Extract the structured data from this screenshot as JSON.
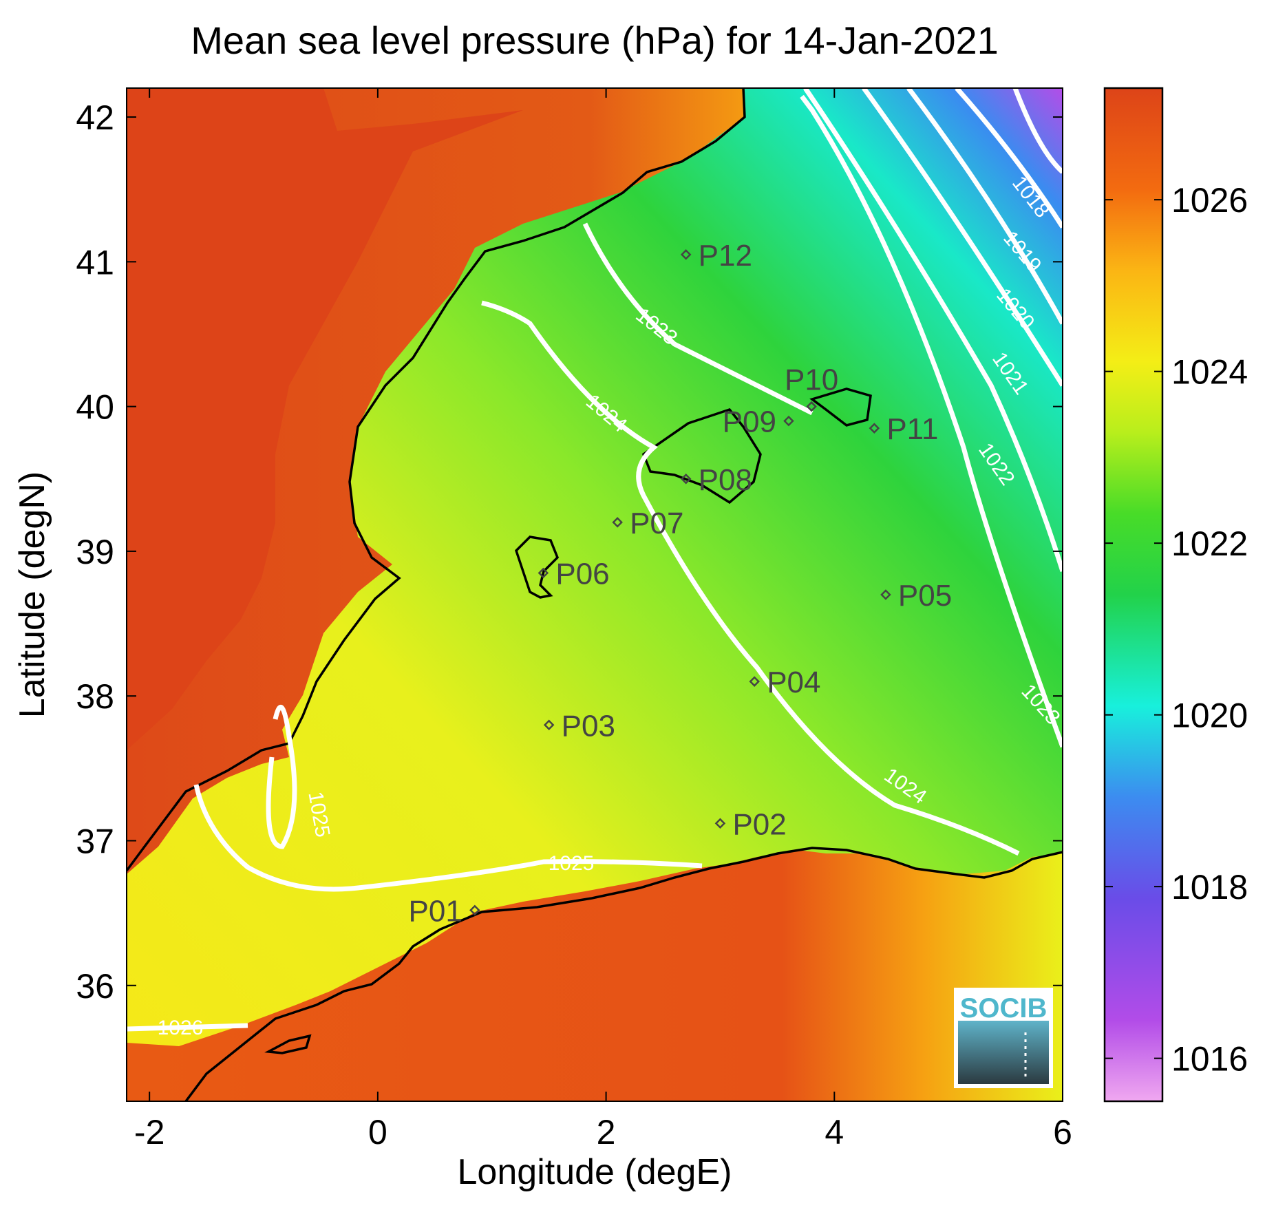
{
  "title": "Mean sea level pressure (hPa) for 14-Jan-2021",
  "xaxis": {
    "label": "Longitude (degE)",
    "range": [
      -2.2,
      6.0
    ],
    "ticks": [
      {
        "value": -2,
        "label": "-2"
      },
      {
        "value": 0,
        "label": "0"
      },
      {
        "value": 2,
        "label": "2"
      },
      {
        "value": 4,
        "label": "4"
      },
      {
        "value": 6,
        "label": "6"
      }
    ]
  },
  "yaxis": {
    "label": "Latitude (degN)",
    "range": [
      35.2,
      42.2
    ],
    "ticks": [
      {
        "value": 36,
        "label": "36"
      },
      {
        "value": 37,
        "label": "37"
      },
      {
        "value": 38,
        "label": "38"
      },
      {
        "value": 39,
        "label": "39"
      },
      {
        "value": 40,
        "label": "40"
      },
      {
        "value": 41,
        "label": "41"
      },
      {
        "value": 42,
        "label": "42"
      }
    ]
  },
  "colorbar": {
    "range": [
      1015.5,
      1027.3
    ],
    "ticks": [
      {
        "value": 1016,
        "label": "1016"
      },
      {
        "value": 1018,
        "label": "1018"
      },
      {
        "value": 1020,
        "label": "1020"
      },
      {
        "value": 1022,
        "label": "1022"
      },
      {
        "value": 1024,
        "label": "1024"
      },
      {
        "value": 1026,
        "label": "1026"
      }
    ],
    "colors": [
      "#ee99ee",
      "#9c3bea",
      "#5a6cf0",
      "#16e8e2",
      "#1fc83a",
      "#9aee22",
      "#f5f01a",
      "#fbb514",
      "#f36b10",
      "#dd4418"
    ]
  },
  "points": [
    {
      "label": "P01",
      "lon": 0.85,
      "lat": 36.52,
      "side": "left"
    },
    {
      "label": "P02",
      "lon": 3.0,
      "lat": 37.12,
      "side": "right"
    },
    {
      "label": "P03",
      "lon": 1.5,
      "lat": 37.8,
      "side": "right"
    },
    {
      "label": "P04",
      "lon": 3.3,
      "lat": 38.1,
      "side": "right"
    },
    {
      "label": "P05",
      "lon": 4.45,
      "lat": 38.7,
      "side": "right"
    },
    {
      "label": "P06",
      "lon": 1.45,
      "lat": 38.85,
      "side": "right"
    },
    {
      "label": "P07",
      "lon": 2.1,
      "lat": 39.2,
      "side": "right"
    },
    {
      "label": "P08",
      "lon": 2.7,
      "lat": 39.5,
      "side": "right"
    },
    {
      "label": "P09",
      "lon": 3.6,
      "lat": 39.9,
      "side": "left"
    },
    {
      "label": "P10",
      "lon": 3.8,
      "lat": 40.0,
      "side": "above"
    },
    {
      "label": "P11",
      "lon": 4.35,
      "lat": 39.85,
      "side": "right"
    },
    {
      "label": "P12",
      "lon": 2.7,
      "lat": 41.05,
      "side": "right"
    }
  ],
  "contours": [
    {
      "level": "1018",
      "label": "1018"
    },
    {
      "level": "1019",
      "label": "1019"
    },
    {
      "level": "1020",
      "label": "1020"
    },
    {
      "level": "1021",
      "label": "1021"
    },
    {
      "level": "1022",
      "label": "1022"
    },
    {
      "level": "1023",
      "label": "1023"
    },
    {
      "level": "1024",
      "label": "1024"
    },
    {
      "level": "1025",
      "label": "1025"
    },
    {
      "level": "1026",
      "label": "1026"
    }
  ],
  "logo": {
    "text": "SOCIB"
  }
}
